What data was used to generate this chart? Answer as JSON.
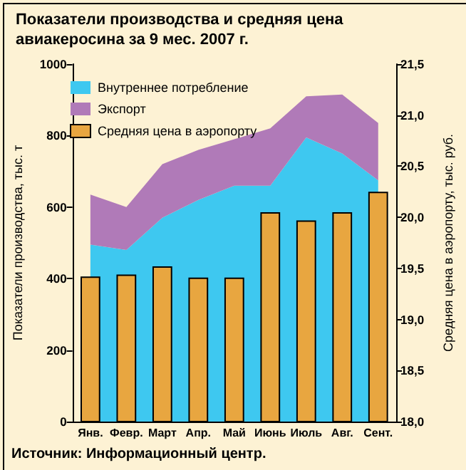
{
  "chart_data": {
    "type": "area",
    "title": "Показатели производства и средняя цена авиакеросина за 9 мес. 2007 г.",
    "ylabel": "Показатели производства, тыс. т",
    "y2label": "Средняя цена в аэропорту, тыс. руб.",
    "categories": [
      "Янв.",
      "Февр.",
      "Март",
      "Апр.",
      "Май",
      "Июнь",
      "Июль",
      "Авг.",
      "Сент."
    ],
    "series": [
      {
        "name": "Внутреннее потребление",
        "color": "#3ec8f0",
        "values": [
          495,
          480,
          570,
          620,
          660,
          660,
          795,
          750,
          675
        ]
      },
      {
        "name": "Экспорт",
        "color": "#b07ab8",
        "values": [
          140,
          120,
          150,
          140,
          130,
          160,
          115,
          165,
          160
        ]
      },
      {
        "name": "Средняя цена в аэропорту",
        "type": "bar",
        "axis": "y2",
        "color": "#e8a640",
        "values": [
          19.42,
          19.44,
          19.52,
          19.41,
          19.41,
          20.05,
          19.97,
          20.05,
          20.25
        ]
      }
    ],
    "stacked": true,
    "ylim": [
      0,
      1000
    ],
    "yticks": [
      0,
      200,
      400,
      600,
      800,
      1000
    ],
    "y2lim": [
      18,
      21.5
    ],
    "y2ticks": [
      {
        "value": 18,
        "label": "18,0"
      },
      {
        "value": 18.5,
        "label": "18,5"
      },
      {
        "value": 19,
        "label": "19,0"
      },
      {
        "value": 19.5,
        "label": "19,5"
      },
      {
        "value": 20,
        "label": "20,0"
      },
      {
        "value": 20.5,
        "label": "20,5"
      },
      {
        "value": 21,
        "label": "21,0"
      },
      {
        "value": 21.5,
        "label": "21,5"
      }
    ],
    "grid": false,
    "legend": "top left",
    "annotations": [
      "Источник: Информационный центр."
    ]
  }
}
